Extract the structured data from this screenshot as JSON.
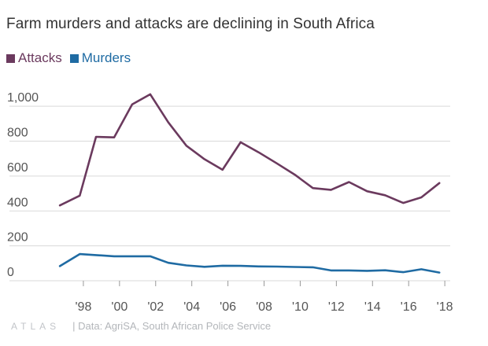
{
  "title": "Farm murders and attacks are declining in South Africa",
  "colors": {
    "attacks": "#6b3a5e",
    "murders": "#1f6ba3",
    "grid": "#d9d9d9",
    "tick": "#555555"
  },
  "legend": {
    "attacks_label": "Attacks",
    "murders_label": "Murders"
  },
  "footer": {
    "logo": "ATLAS",
    "source": "| Data: AgriSA, South African Police Service"
  },
  "chart_data": {
    "type": "line",
    "title": "Farm murders and attacks are declining in South Africa",
    "xlabel": "",
    "ylabel": "",
    "ylim": [
      0,
      1100
    ],
    "yticks": [
      0,
      200,
      400,
      600,
      800,
      1000
    ],
    "ytick_labels": [
      "0",
      "200",
      "400",
      "600",
      "800",
      "1,000"
    ],
    "xlim": [
      1996,
      2018.3
    ],
    "xticks": [
      1998,
      2000,
      2002,
      2004,
      2006,
      2008,
      2010,
      2012,
      2014,
      2016,
      2018
    ],
    "xtick_labels": [
      "'98",
      "'00",
      "'02",
      "'04",
      "'06",
      "'08",
      "'10",
      "'12",
      "'14",
      "'16",
      "'18"
    ],
    "grid": true,
    "legend_position": "top-left",
    "series": [
      {
        "name": "Attacks",
        "color": "#6b3a5e",
        "x": [
          1996.7,
          1997.8,
          1998.7,
          1999.7,
          2000.7,
          2001.7,
          2002.7,
          2003.7,
          2004.7,
          2005.7,
          2006.7,
          2007.7,
          2008.7,
          2009.7,
          2010.7,
          2011.7,
          2012.7,
          2013.7,
          2014.7,
          2015.7,
          2016.7,
          2017.7
        ],
        "y": [
          432,
          488,
          825,
          822,
          1011,
          1069,
          908,
          774,
          697,
          636,
          794,
          736,
          673,
          608,
          531,
          521,
          566,
          513,
          490,
          446,
          478,
          560
        ]
      },
      {
        "name": "Murders",
        "color": "#1f6ba3",
        "x": [
          1996.7,
          1997.8,
          1998.7,
          1999.7,
          2000.7,
          2001.7,
          2002.7,
          2003.7,
          2004.7,
          2005.7,
          2006.7,
          2007.7,
          2008.7,
          2009.7,
          2010.7,
          2011.7,
          2012.7,
          2013.7,
          2014.7,
          2015.7,
          2016.7,
          2017.7
        ],
        "y": [
          84,
          153,
          147,
          140,
          140,
          140,
          103,
          88,
          80,
          86,
          85,
          82,
          81,
          79,
          77,
          59,
          59,
          57,
          60,
          49,
          66,
          47
        ]
      }
    ]
  }
}
